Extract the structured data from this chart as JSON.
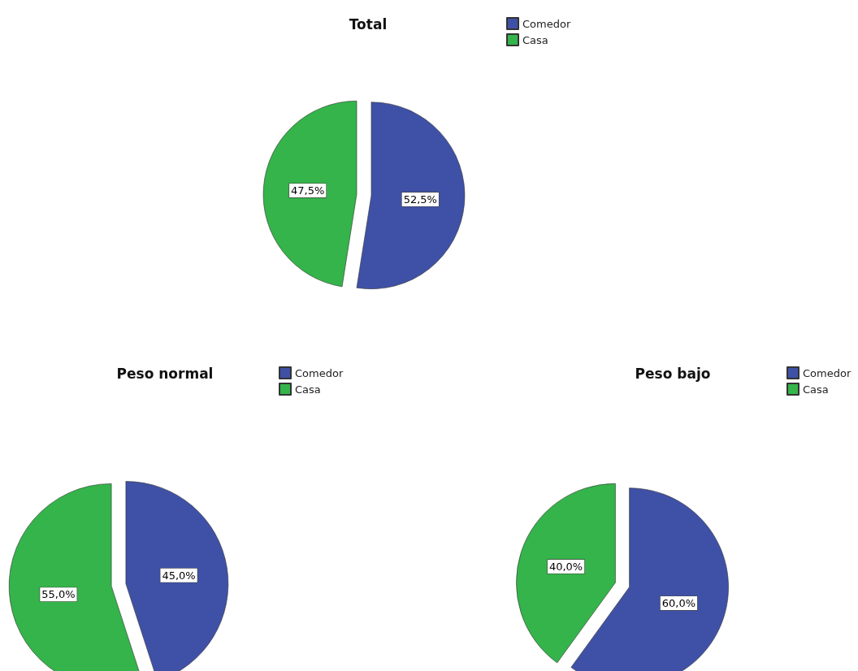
{
  "chart_data": [
    {
      "type": "pie",
      "title": "Total",
      "categories": [
        "Comedor",
        "Casa"
      ],
      "values": [
        52.5,
        47.5
      ],
      "colors": [
        "#3f51a6",
        "#34b44a"
      ],
      "value_labels": [
        "52,5%",
        "47,5%"
      ],
      "legend": "top right"
    },
    {
      "type": "pie",
      "title": "Peso normal",
      "categories": [
        "Comedor",
        "Casa"
      ],
      "values": [
        45.0,
        55.0
      ],
      "colors": [
        "#3f51a6",
        "#34b44a"
      ],
      "value_labels": [
        "45,0%",
        "55,0%"
      ],
      "legend": "top right"
    },
    {
      "type": "pie",
      "title": "Peso bajo",
      "categories": [
        "Comedor",
        "Casa"
      ],
      "values": [
        60.0,
        40.0
      ],
      "colors": [
        "#3f51a6",
        "#34b44a"
      ],
      "value_labels": [
        "60,0%",
        "40,0%"
      ],
      "legend": "top right"
    }
  ]
}
